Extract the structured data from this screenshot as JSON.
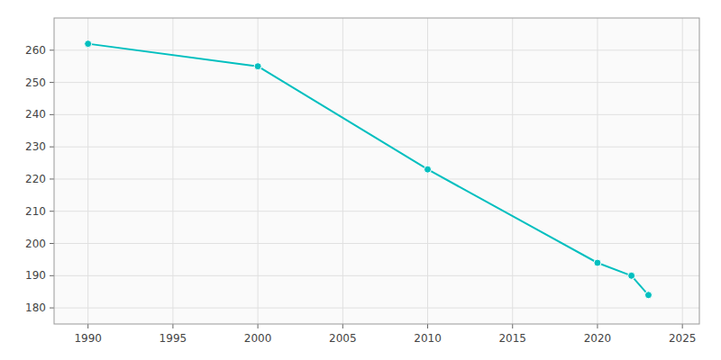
{
  "chart_data": {
    "type": "line",
    "x": [
      1990,
      2000,
      2010,
      2020,
      2022,
      2023
    ],
    "values": [
      262,
      255,
      223,
      194,
      190,
      184
    ],
    "color": "#00BFBF",
    "marker": "circle",
    "xlim": [
      1988,
      2026
    ],
    "ylim": [
      175,
      270
    ],
    "xticks": [
      1990,
      1995,
      2000,
      2005,
      2010,
      2015,
      2020,
      2025
    ],
    "yticks": [
      180,
      190,
      200,
      210,
      220,
      230,
      240,
      250,
      260
    ],
    "grid": true
  }
}
